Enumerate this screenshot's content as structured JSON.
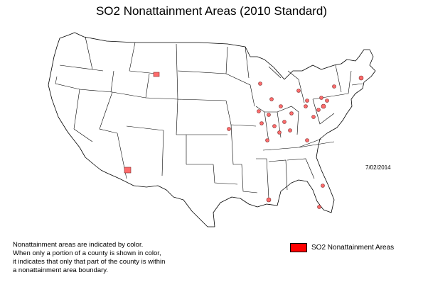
{
  "title": "SO2 Nonattainment Areas (2010 Standard)",
  "date": "7/02/2014",
  "note_lines": [
    "Nonattainment areas are indicated by color.",
    "When only a portion of a county is shown in color,",
    "it indicates that only that part of the county is within",
    "a nonattainment area boundary."
  ],
  "legend": {
    "label": "SO2 Nonattainment Areas",
    "color": "#ff0000"
  },
  "colors": {
    "land": "#ffffff",
    "outline": "#000000",
    "area_fill": "#ff0000",
    "area_outline": "#7a2a2a"
  },
  "nonattainment_area_count": 29
}
